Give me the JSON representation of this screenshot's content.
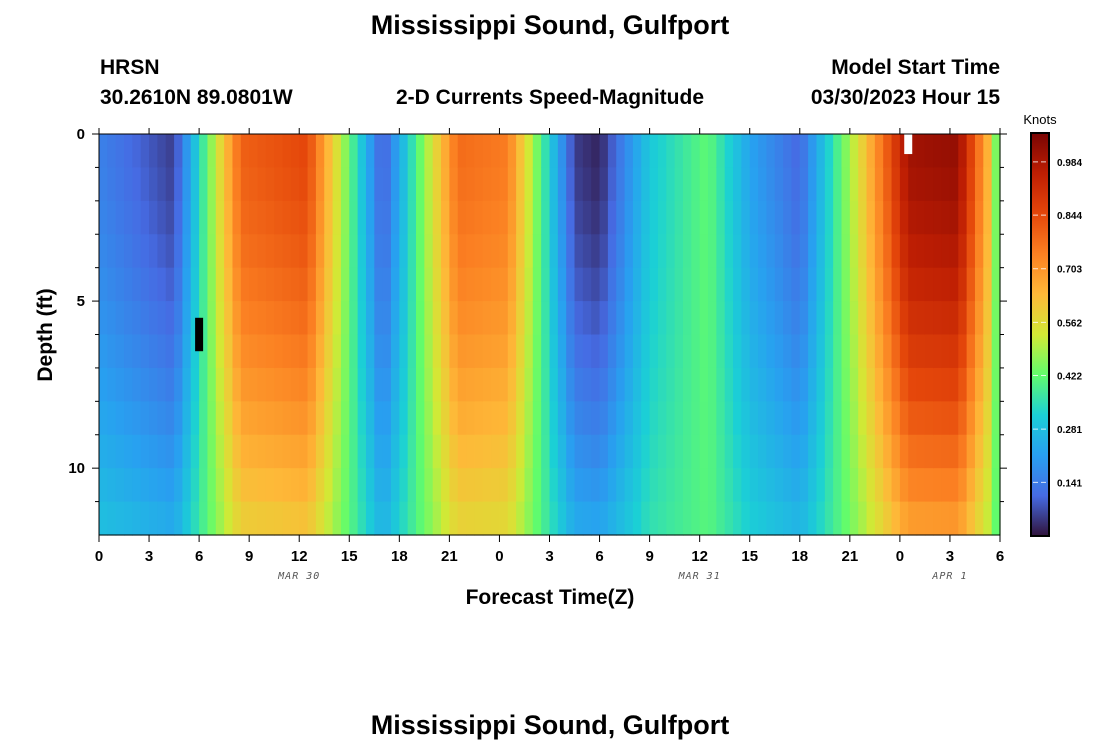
{
  "page": {
    "title": "Mississippi Sound, Gulfport",
    "station_id": "HRSN",
    "coordinates": "30.2610N  89.0801W",
    "subtitle": "2-D Currents Speed-Magnitude",
    "model_start_label": "Model Start Time",
    "model_start_value": "03/30/2023 Hour 15",
    "footer_title": "Mississippi Sound, Gulfport"
  },
  "chart_data": {
    "type": "heatmap",
    "xlabel": "Forecast Time(Z)",
    "ylabel": "Depth (ft)",
    "x_range_hours": [
      0,
      54
    ],
    "x_tick_step_hours": 3,
    "x_tick_labels": [
      "0",
      "3",
      "6",
      "9",
      "12",
      "15",
      "18",
      "21",
      "0",
      "3",
      "6",
      "9",
      "12",
      "15",
      "18",
      "21",
      "0",
      "3",
      "6"
    ],
    "date_labels": [
      {
        "text": "MAR 30",
        "hour": 12
      },
      {
        "text": "MAR 31",
        "hour": 36
      },
      {
        "text": "APR 1",
        "hour": 51
      }
    ],
    "ylim": [
      0,
      12
    ],
    "y_tick_labels": [
      {
        "value": 0,
        "text": "0"
      },
      {
        "value": 5,
        "text": "5"
      },
      {
        "value": 10,
        "text": "10"
      }
    ],
    "y_minor_ticks": [
      1,
      2,
      3,
      4,
      6,
      7,
      8,
      9,
      11
    ],
    "colorbar": {
      "unit": "Knots",
      "min": 0.0,
      "max": 1.06,
      "labels": [
        "0.141",
        "0.281",
        "0.422",
        "0.562",
        "0.703",
        "0.844",
        "0.984"
      ]
    },
    "time_hours": [
      0,
      4.5,
      8.5,
      12.5,
      17,
      21.5,
      24.5,
      28.5,
      30,
      33,
      36.5,
      39,
      42,
      45.5,
      48.5,
      51.5,
      53.5,
      54
    ],
    "surface_speed": [
      0.15,
      0.05,
      0.8,
      0.85,
      0.08,
      0.78,
      0.75,
      0.05,
      0.02,
      0.3,
      0.42,
      0.22,
      0.1,
      0.55,
      1.0,
      1.02,
      0.6,
      0.3
    ],
    "channel_depth_ft": 12,
    "missing_data_marks": [
      {
        "hour": 6.0,
        "depth_start_ft": 5.5,
        "depth_end_ft": 6.5,
        "color": "#000000"
      },
      {
        "hour": 48.5,
        "depth_start_ft": 0.0,
        "depth_end_ft": 0.6,
        "color": "#ffffff"
      }
    ]
  }
}
